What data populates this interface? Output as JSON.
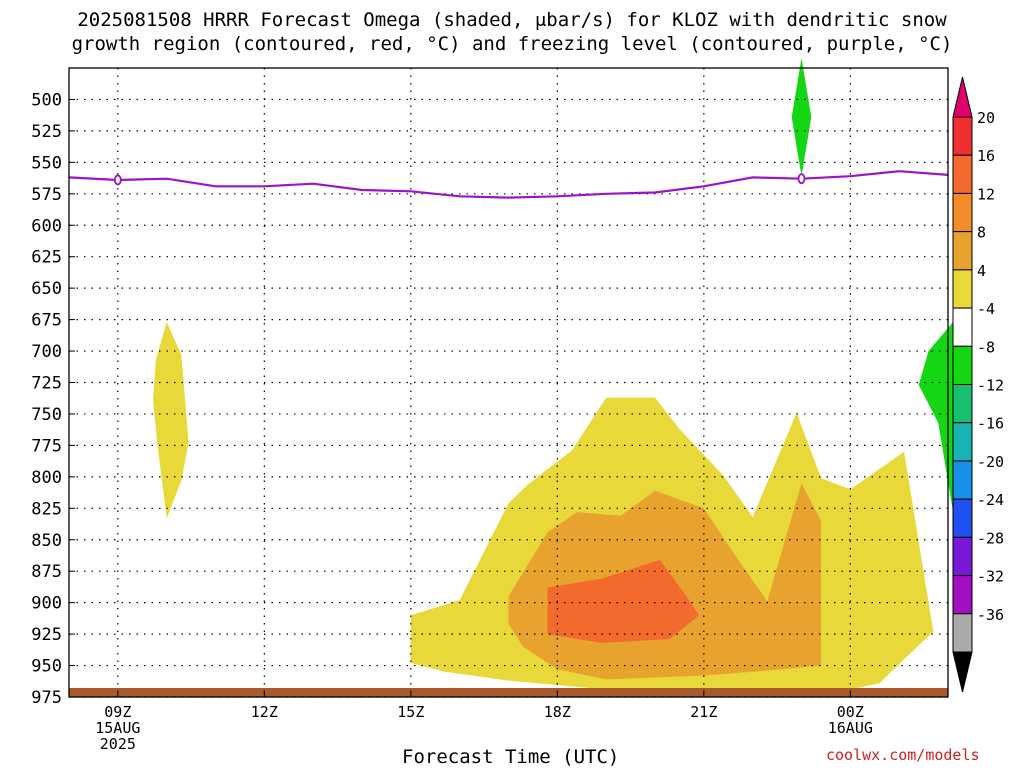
{
  "title_lines": [
    "2025081508 HRRR Forecast Omega (shaded, μbar/s) for KLOZ with dendritic snow",
    "growth region (contoured, red, °C) and freezing level (contoured, purple, °C)"
  ],
  "credit": "coolwx.com/models",
  "chart_data": {
    "type": "heatmap",
    "xlabel": "Forecast Time (UTC)",
    "x_ticks": [
      {
        "hour": 9,
        "label": [
          "09Z",
          "15AUG",
          "2025"
        ]
      },
      {
        "hour": 12,
        "label": [
          "12Z"
        ]
      },
      {
        "hour": 15,
        "label": [
          "15Z"
        ]
      },
      {
        "hour": 18,
        "label": [
          "18Z"
        ]
      },
      {
        "hour": 21,
        "label": [
          "21Z"
        ]
      },
      {
        "hour": 24,
        "label": [
          "00Z",
          "16AUG"
        ]
      }
    ],
    "xlim_hours": [
      8,
      26
    ],
    "y_ticks": [
      500,
      525,
      550,
      575,
      600,
      625,
      650,
      675,
      700,
      725,
      750,
      775,
      800,
      825,
      850,
      875,
      900,
      925,
      950,
      975
    ],
    "ylim_hPa": [
      975,
      475
    ],
    "grid": true,
    "colorbar": {
      "labels": [
        "20",
        "16",
        "12",
        "8",
        "4",
        "-4",
        "-8",
        "-12",
        "-16",
        "-20",
        "-24",
        "-28",
        "-32",
        "-36"
      ],
      "colors": [
        "#e0006e",
        "#f03030",
        "#f26a2c",
        "#f28c2a",
        "#e8a22e",
        "#e8d83a",
        "#ffffff",
        "#14d614",
        "#18bf70",
        "#18b4b4",
        "#1890e8",
        "#2050f0",
        "#7a18d8",
        "#a010c0",
        "#aaaaaa",
        "#000000"
      ]
    },
    "freezing_level": {
      "color": "#9b14c8",
      "points": [
        [
          8,
          562
        ],
        [
          9,
          564
        ],
        [
          10,
          563
        ],
        [
          11,
          569
        ],
        [
          12,
          569
        ],
        [
          13,
          567
        ],
        [
          14,
          572
        ],
        [
          15,
          573
        ],
        [
          16,
          577
        ],
        [
          17,
          578
        ],
        [
          18,
          577
        ],
        [
          19,
          575
        ],
        [
          20,
          574
        ],
        [
          21,
          569
        ],
        [
          22,
          562
        ],
        [
          23,
          563
        ],
        [
          24,
          561
        ],
        [
          25,
          557
        ],
        [
          26,
          560
        ]
      ],
      "markers": [
        [
          9,
          564
        ],
        [
          23,
          563
        ]
      ]
    },
    "omega_regions": [
      {
        "level": "4 to 8",
        "color": "#e8d83a",
        "points": [
          [
            10,
            677
          ],
          [
            10.3,
            703
          ],
          [
            10.45,
            773
          ],
          [
            10.3,
            803
          ],
          [
            10.0,
            833
          ],
          [
            9.8,
            771
          ],
          [
            9.72,
            739
          ],
          [
            9.78,
            707
          ]
        ]
      },
      {
        "level": "4 to 8",
        "color": "#e8d83a",
        "points": [
          [
            15,
            910
          ],
          [
            16,
            898
          ],
          [
            17,
            821
          ],
          [
            17.4,
            806
          ],
          [
            18.3,
            779
          ],
          [
            19.0,
            737
          ],
          [
            20.0,
            737
          ],
          [
            20.5,
            762
          ],
          [
            21.4,
            799
          ],
          [
            22.0,
            832
          ],
          [
            22.9,
            749
          ],
          [
            23.4,
            801
          ],
          [
            24.0,
            810
          ],
          [
            25.1,
            780
          ],
          [
            25.7,
            923
          ],
          [
            25.1,
            945
          ],
          [
            24.6,
            964
          ],
          [
            24.0,
            969
          ],
          [
            23.0,
            973
          ],
          [
            21.0,
            968
          ],
          [
            19.0,
            969
          ],
          [
            17.0,
            962
          ],
          [
            15.7,
            955
          ],
          [
            15.0,
            948
          ]
        ]
      },
      {
        "level": "8 to 12",
        "color": "#e8a22e",
        "points": [
          [
            17.0,
            895
          ],
          [
            17.8,
            844
          ],
          [
            18.4,
            828
          ],
          [
            19.3,
            831
          ],
          [
            20.0,
            811
          ],
          [
            21.0,
            825
          ],
          [
            21.6,
            860
          ],
          [
            22.3,
            899
          ],
          [
            23.0,
            805
          ],
          [
            23.4,
            835
          ],
          [
            23.4,
            950
          ],
          [
            22.0,
            955
          ],
          [
            21.0,
            958
          ],
          [
            19.0,
            961
          ],
          [
            18.0,
            953
          ],
          [
            17.3,
            935
          ],
          [
            17.0,
            917
          ]
        ]
      },
      {
        "level": "12 to 16",
        "color": "#f26a2c",
        "points": [
          [
            17.8,
            888
          ],
          [
            18.9,
            881
          ],
          [
            20.1,
            866
          ],
          [
            20.7,
            898
          ],
          [
            20.9,
            910
          ],
          [
            20.3,
            929
          ],
          [
            18.9,
            932
          ],
          [
            17.8,
            925
          ]
        ]
      },
      {
        "level": "-4 to -8",
        "color": "#14d614",
        "points": [
          [
            23.0,
            467
          ],
          [
            23.2,
            514
          ],
          [
            23.0,
            561
          ],
          [
            22.8,
            514
          ]
        ]
      },
      {
        "level": "-4 to -8",
        "color": "#14d614",
        "points": [
          [
            26.1,
            677
          ],
          [
            26.1,
            827
          ],
          [
            25.8,
            757
          ],
          [
            25.4,
            727
          ],
          [
            25.6,
            700
          ]
        ]
      }
    ],
    "ground_color": "#a85a2e"
  }
}
